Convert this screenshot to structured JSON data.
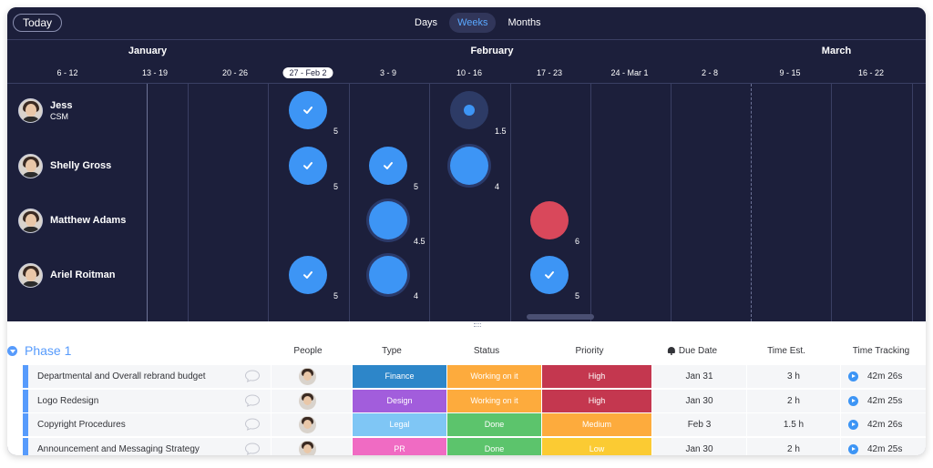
{
  "toolbar": {
    "today_label": "Today",
    "views": [
      "Days",
      "Weeks",
      "Months"
    ],
    "active_view": "Weeks"
  },
  "timeline": {
    "months": [
      "January",
      "February",
      "March"
    ],
    "weeks": [
      "6 - 12",
      "13 - 19",
      "20 - 26",
      "27 - Feb 2",
      "3 - 9",
      "10 - 16",
      "17 - 23",
      "24 - Mar 1",
      "2 - 8",
      "9 - 15",
      "16 - 22"
    ],
    "current_week": "27 - Feb 2"
  },
  "people": [
    {
      "name": "Jess",
      "role": "CSM"
    },
    {
      "name": "Shelly Gross",
      "role": ""
    },
    {
      "name": "Matthew Adams",
      "role": ""
    },
    {
      "name": "Ariel Roitman",
      "role": ""
    }
  ],
  "workload": [
    {
      "person": 0,
      "week": "27 - Feb 2",
      "count": "5",
      "state": "done"
    },
    {
      "person": 0,
      "week": "10 - 16",
      "count": "1.5",
      "state": "light"
    },
    {
      "person": 1,
      "week": "27 - Feb 2",
      "count": "5",
      "state": "done"
    },
    {
      "person": 1,
      "week": "3 - 9",
      "count": "5",
      "state": "done"
    },
    {
      "person": 1,
      "week": "10 - 16",
      "count": "4",
      "state": "active"
    },
    {
      "person": 2,
      "week": "3 - 9",
      "count": "4.5",
      "state": "active"
    },
    {
      "person": 2,
      "week": "17 - 23",
      "count": "6",
      "state": "overload"
    },
    {
      "person": 3,
      "week": "27 - Feb 2",
      "count": "5",
      "state": "done"
    },
    {
      "person": 3,
      "week": "3 - 9",
      "count": "4",
      "state": "active"
    },
    {
      "person": 3,
      "week": "17 - 23",
      "count": "5",
      "state": "done"
    }
  ],
  "colors": {
    "accent": "#579bfc",
    "done_blue": "#3d95f5",
    "overload_red": "#d9485b",
    "dark_bg": "#1c1f3b"
  },
  "board": {
    "group_title": "Phase 1",
    "columns": {
      "people": "People",
      "type": "Type",
      "status": "Status",
      "priority": "Priority",
      "due": "Due Date",
      "estimate": "Time Est.",
      "tracking": "Time Tracking"
    },
    "rows": [
      {
        "name": "Departmental and Overall rebrand budget",
        "type": "Finance",
        "type_color": "#2d86c9",
        "status": "Working on it",
        "status_color": "#fdab3d",
        "priority": "High",
        "priority_color": "#c4374f",
        "due": "Jan 31",
        "estimate": "3 h",
        "tracking": "42m 26s"
      },
      {
        "name": "Logo Redesign",
        "type": "Design",
        "type_color": "#a25ddc",
        "status": "Working on it",
        "status_color": "#fdab3d",
        "priority": "High",
        "priority_color": "#c4374f",
        "due": "Jan 30",
        "estimate": "2 h",
        "tracking": "42m 25s"
      },
      {
        "name": "Copyright Procedures",
        "type": "Legal",
        "type_color": "#7fc6f5",
        "status": "Done",
        "status_color": "#5cc46c",
        "priority": "Medium",
        "priority_color": "#fdab3d",
        "due": "Feb 3",
        "estimate": "1.5 h",
        "tracking": "42m 26s"
      },
      {
        "name": "Announcement and Messaging Strategy",
        "type": "PR",
        "type_color": "#f06bc3",
        "status": "Done",
        "status_color": "#5cc46c",
        "priority": "Low",
        "priority_color": "#fbcb33",
        "due": "Jan 30",
        "estimate": "2 h",
        "tracking": "42m 25s"
      }
    ]
  }
}
